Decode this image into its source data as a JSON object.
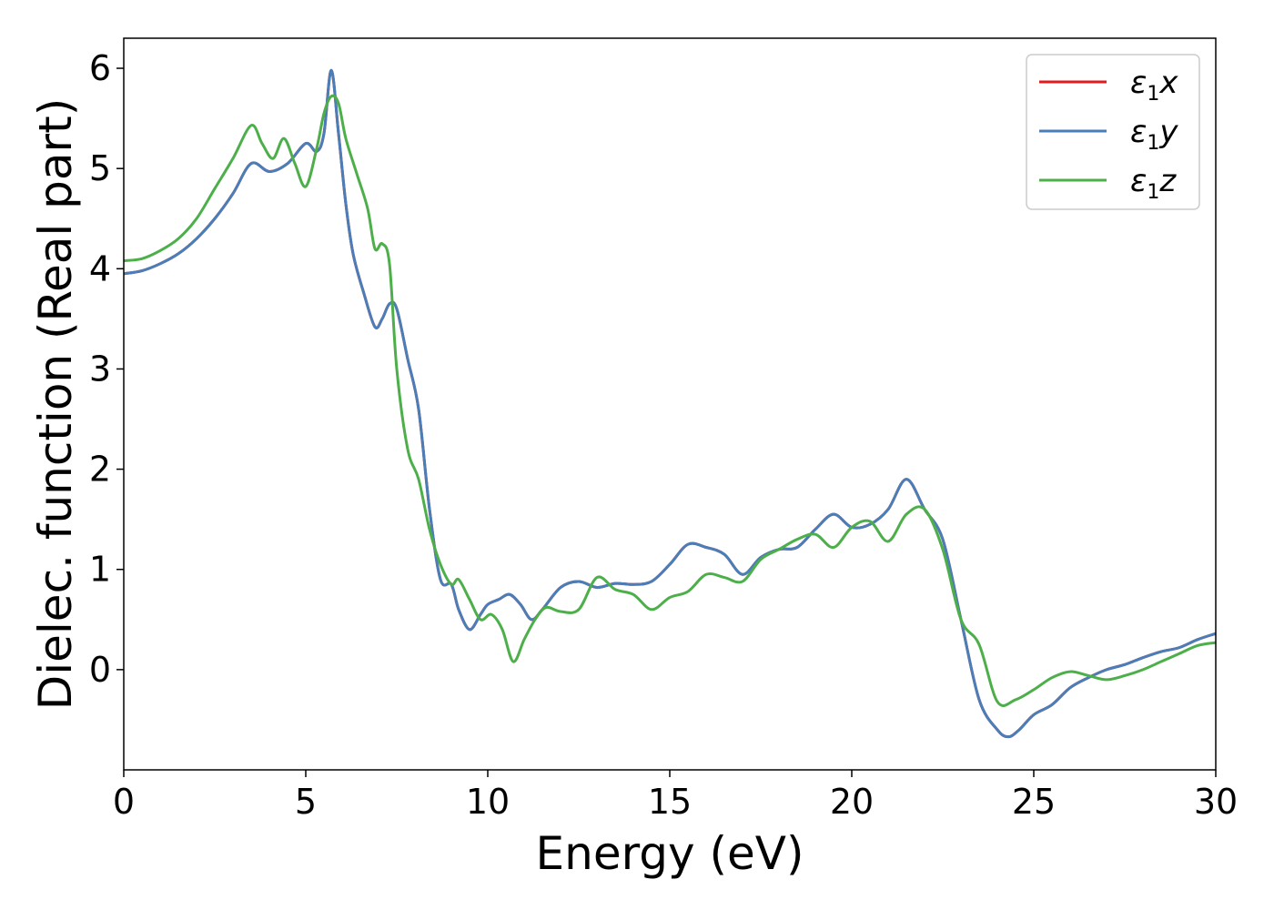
{
  "chart_data": {
    "type": "line",
    "title": "",
    "xlabel": "Energy (eV)",
    "ylabel": "Dielec. function (Real part)",
    "xlim": [
      0,
      30
    ],
    "ylim": [
      -1,
      6.3
    ],
    "xticks": [
      0,
      5,
      10,
      15,
      20,
      25,
      30
    ],
    "yticks": [
      0,
      1,
      2,
      3,
      4,
      5,
      6
    ],
    "grid": false,
    "legend_position": "top-right",
    "series": [
      {
        "name": "ε₁x",
        "name_main": "ε",
        "name_sub": "1",
        "name_var": "x",
        "color": "#e41a1c",
        "x": [
          0,
          0.5,
          1,
          1.5,
          2,
          2.5,
          3,
          3.5,
          4,
          4.5,
          5,
          5.3,
          5.5,
          5.7,
          5.9,
          6.1,
          6.3,
          6.6,
          6.9,
          7.1,
          7.3,
          7.5,
          7.8,
          8.1,
          8.4,
          8.7,
          9,
          9.2,
          9.5,
          9.8,
          10,
          10.3,
          10.6,
          10.9,
          11.2,
          11.5,
          12,
          12.5,
          13,
          13.5,
          14,
          14.5,
          15,
          15.5,
          16,
          16.5,
          17,
          17.5,
          18,
          18.5,
          19,
          19.5,
          20,
          20.5,
          21,
          21.5,
          22,
          22.5,
          23,
          23.5,
          24,
          24.3,
          24.6,
          25,
          25.5,
          26,
          26.5,
          27,
          27.5,
          28,
          28.5,
          29,
          29.5,
          30
        ],
        "y": [
          3.95,
          3.98,
          4.05,
          4.15,
          4.3,
          4.5,
          4.75,
          5.05,
          4.97,
          5.05,
          5.25,
          5.17,
          5.35,
          5.98,
          5.35,
          4.65,
          4.15,
          3.75,
          3.42,
          3.5,
          3.65,
          3.6,
          3.1,
          2.6,
          1.6,
          0.9,
          0.85,
          0.6,
          0.4,
          0.55,
          0.65,
          0.7,
          0.75,
          0.65,
          0.5,
          0.6,
          0.82,
          0.88,
          0.82,
          0.86,
          0.85,
          0.88,
          1.05,
          1.25,
          1.22,
          1.15,
          0.95,
          1.12,
          1.2,
          1.22,
          1.4,
          1.55,
          1.42,
          1.45,
          1.6,
          1.9,
          1.6,
          1.3,
          0.5,
          -0.3,
          -0.6,
          -0.67,
          -0.6,
          -0.45,
          -0.35,
          -0.18,
          -0.08,
          0.0,
          0.05,
          0.12,
          0.18,
          0.22,
          0.3,
          0.36
        ]
      },
      {
        "name": "ε₁y",
        "name_main": "ε",
        "name_sub": "1",
        "name_var": "y",
        "color": "#4a7eb8",
        "x": [
          0,
          0.5,
          1,
          1.5,
          2,
          2.5,
          3,
          3.5,
          4,
          4.5,
          5,
          5.3,
          5.5,
          5.7,
          5.9,
          6.1,
          6.3,
          6.6,
          6.9,
          7.1,
          7.3,
          7.5,
          7.8,
          8.1,
          8.4,
          8.7,
          9,
          9.2,
          9.5,
          9.8,
          10,
          10.3,
          10.6,
          10.9,
          11.2,
          11.5,
          12,
          12.5,
          13,
          13.5,
          14,
          14.5,
          15,
          15.5,
          16,
          16.5,
          17,
          17.5,
          18,
          18.5,
          19,
          19.5,
          20,
          20.5,
          21,
          21.5,
          22,
          22.5,
          23,
          23.5,
          24,
          24.3,
          24.6,
          25,
          25.5,
          26,
          26.5,
          27,
          27.5,
          28,
          28.5,
          29,
          29.5,
          30
        ],
        "y": [
          3.95,
          3.98,
          4.05,
          4.15,
          4.3,
          4.5,
          4.75,
          5.05,
          4.97,
          5.05,
          5.25,
          5.17,
          5.35,
          5.98,
          5.35,
          4.65,
          4.15,
          3.75,
          3.42,
          3.5,
          3.65,
          3.6,
          3.1,
          2.6,
          1.6,
          0.9,
          0.85,
          0.6,
          0.4,
          0.55,
          0.65,
          0.7,
          0.75,
          0.65,
          0.5,
          0.6,
          0.82,
          0.88,
          0.82,
          0.86,
          0.85,
          0.88,
          1.05,
          1.25,
          1.22,
          1.15,
          0.95,
          1.12,
          1.2,
          1.22,
          1.4,
          1.55,
          1.42,
          1.45,
          1.6,
          1.9,
          1.6,
          1.3,
          0.5,
          -0.3,
          -0.6,
          -0.67,
          -0.6,
          -0.45,
          -0.35,
          -0.18,
          -0.08,
          0.0,
          0.05,
          0.12,
          0.18,
          0.22,
          0.3,
          0.36
        ]
      },
      {
        "name": "ε₁z",
        "name_main": "ε",
        "name_sub": "1",
        "name_var": "z",
        "color": "#4daf4a",
        "x": [
          0,
          0.5,
          1,
          1.5,
          2,
          2.5,
          3,
          3.5,
          3.8,
          4.1,
          4.4,
          4.7,
          5,
          5.3,
          5.5,
          5.7,
          5.9,
          6.1,
          6.4,
          6.7,
          6.9,
          7.1,
          7.3,
          7.5,
          7.8,
          8.1,
          8.4,
          8.7,
          9,
          9.2,
          9.5,
          9.8,
          10.1,
          10.4,
          10.7,
          11,
          11.3,
          11.6,
          12,
          12.5,
          13,
          13.5,
          14,
          14.5,
          15,
          15.5,
          16,
          16.5,
          17,
          17.5,
          18,
          18.5,
          19,
          19.5,
          20,
          20.5,
          21,
          21.5,
          22,
          22.5,
          23,
          23.5,
          24,
          24.5,
          25,
          25.5,
          26,
          26.5,
          27,
          27.5,
          28,
          28.5,
          29,
          29.5,
          30
        ],
        "y": [
          4.08,
          4.1,
          4.18,
          4.3,
          4.5,
          4.8,
          5.1,
          5.43,
          5.25,
          5.1,
          5.3,
          5.05,
          4.82,
          5.2,
          5.55,
          5.72,
          5.65,
          5.3,
          4.95,
          4.6,
          4.2,
          4.25,
          4.05,
          3.0,
          2.2,
          1.9,
          1.4,
          1.05,
          0.85,
          0.9,
          0.7,
          0.5,
          0.55,
          0.4,
          0.08,
          0.3,
          0.5,
          0.62,
          0.58,
          0.6,
          0.92,
          0.8,
          0.75,
          0.6,
          0.72,
          0.78,
          0.95,
          0.92,
          0.88,
          1.1,
          1.2,
          1.3,
          1.35,
          1.22,
          1.42,
          1.48,
          1.28,
          1.55,
          1.6,
          1.2,
          0.5,
          0.25,
          -0.32,
          -0.3,
          -0.2,
          -0.08,
          -0.02,
          -0.06,
          -0.1,
          -0.06,
          0.0,
          0.08,
          0.16,
          0.24,
          0.27
        ]
      }
    ]
  }
}
